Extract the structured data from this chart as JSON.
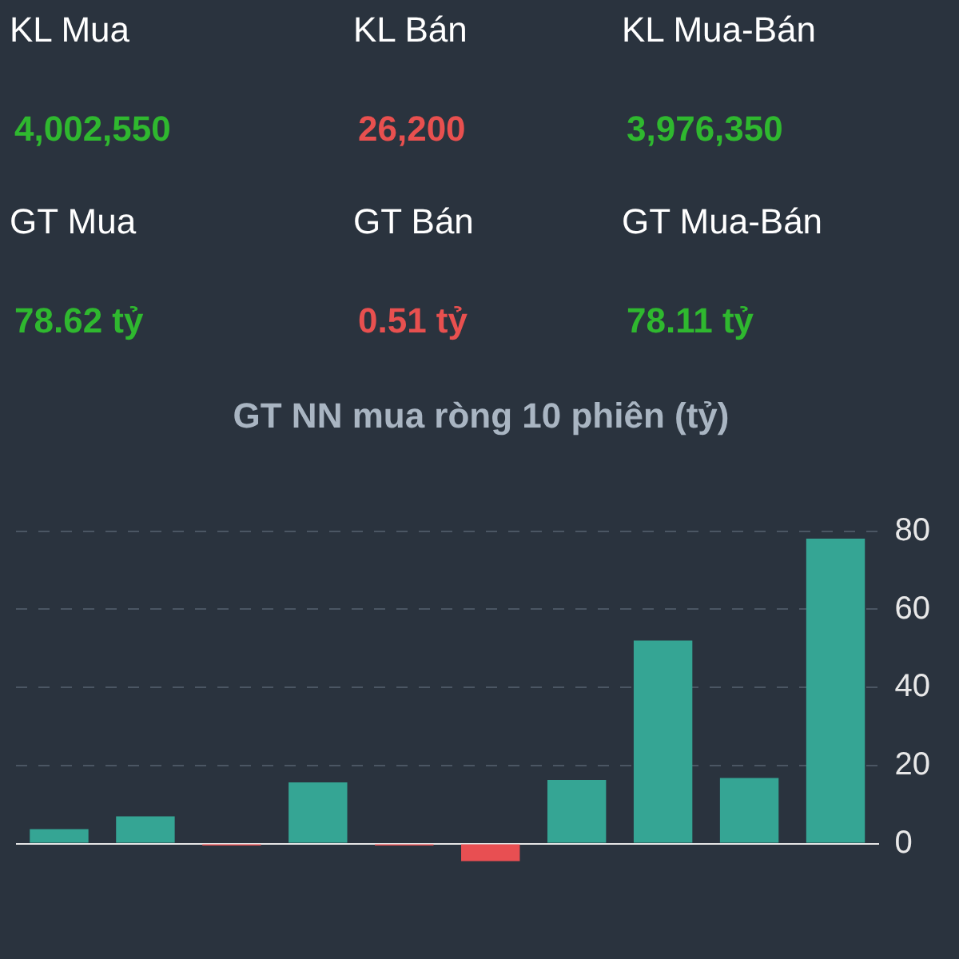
{
  "chart_data": [
    {
      "type": "other",
      "annotations": [
        "KL Mua",
        "KL Bán",
        "KL Mua-Bán",
        "4,002,550",
        "26,200",
        "3,976,350",
        "GT Mua",
        "GT Bán",
        "GT Mua-Bán",
        "78.62 tỷ",
        "0.51 tỷ",
        "78.11 tỷ"
      ],
      "colors": [
        "#2fb82f",
        "#e8504f",
        "#2fb82f",
        "#2fb82f",
        "#e8504f",
        "#2fb82f"
      ]
    },
    {
      "type": "bar",
      "title": "GT NN mua ròng 10 phiên (tỷ)",
      "categories": [
        null,
        null,
        null,
        null,
        null,
        null,
        null,
        null,
        null,
        null
      ],
      "values": [
        3.7,
        7.0,
        -0.5,
        15.7,
        -0.5,
        -4.5,
        16.3,
        52.0,
        16.8,
        78.1
      ],
      "colors": [
        "#35a594",
        "#35a594",
        "#e84f52",
        "#35a594",
        "#e84f52",
        "#e84f52",
        "#35a594",
        "#35a594",
        "#35a594",
        "#35a594"
      ],
      "ylim": [
        -5,
        80
      ],
      "yticks": [
        0,
        20,
        40,
        60,
        80
      ],
      "grid": "y",
      "legend": false
    }
  ]
}
